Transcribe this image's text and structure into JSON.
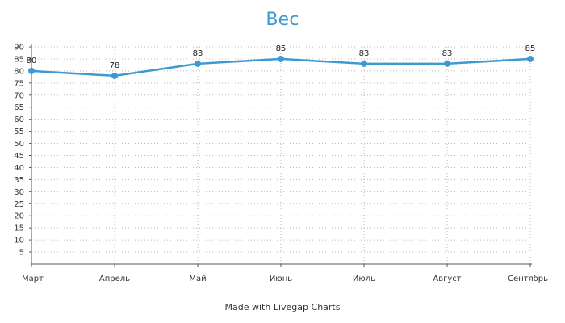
{
  "chart_data": {
    "type": "line",
    "title": "Вес",
    "xlabel": "",
    "ylabel": "",
    "categories": [
      "Март",
      "Апрель",
      "Май",
      "Июнь",
      "Июль",
      "Август",
      "Сентябрь"
    ],
    "series": [
      {
        "values": [
          80,
          78,
          83,
          85,
          83,
          83,
          85
        ]
      }
    ],
    "ylim": [
      0,
      90
    ],
    "y_ticks": [
      5,
      10,
      15,
      20,
      25,
      30,
      35,
      40,
      45,
      50,
      55,
      60,
      65,
      70,
      75,
      80,
      85,
      90
    ],
    "grid": true,
    "data_labels": true,
    "colors": {
      "line": "#3d9ad1",
      "title": "#3d9ad1",
      "grid": "#b8b8b8"
    }
  },
  "footer": {
    "credit": "Made with Livegap Charts"
  }
}
